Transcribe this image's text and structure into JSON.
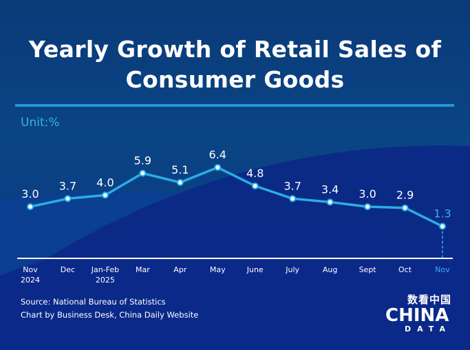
{
  "title_line1": "Yearly Growth of Retail Sales of",
  "title_line2": "Consumer Goods",
  "unit": "Unit:%",
  "source": "Source: National Bureau of Statistics",
  "credit": "Chart by Business Desk, China Daily Website",
  "logo": {
    "cn": "数看中国",
    "main": "CHINA",
    "sub": "DATA"
  },
  "colors": {
    "line": "#29aee6",
    "highlight": "#3ab0e8",
    "text": "#ffffff"
  },
  "chart_data": {
    "type": "line",
    "title": "Yearly Growth of Retail Sales of Consumer Goods",
    "ylabel": "Unit:%",
    "categories": [
      [
        "Nov",
        "2024"
      ],
      [
        "Dec"
      ],
      [
        "Jan-Feb",
        "2025"
      ],
      [
        "Mar"
      ],
      [
        "Apr"
      ],
      [
        "May"
      ],
      [
        "June"
      ],
      [
        "July"
      ],
      [
        "Aug"
      ],
      [
        "Sept"
      ],
      [
        "Oct"
      ],
      [
        "Nov"
      ]
    ],
    "series": [
      {
        "name": "Yearly growth",
        "values": [
          3.0,
          3.7,
          4.0,
          5.9,
          5.1,
          6.4,
          4.8,
          3.7,
          3.4,
          3.0,
          2.9,
          1.3
        ]
      }
    ],
    "labels": [
      "3.0",
      "3.7",
      "4.0",
      "5.9",
      "5.1",
      "6.4",
      "4.8",
      "3.7",
      "3.4",
      "3.0",
      "2.9",
      "1.3"
    ],
    "highlight_index": 11,
    "grid": false
  }
}
